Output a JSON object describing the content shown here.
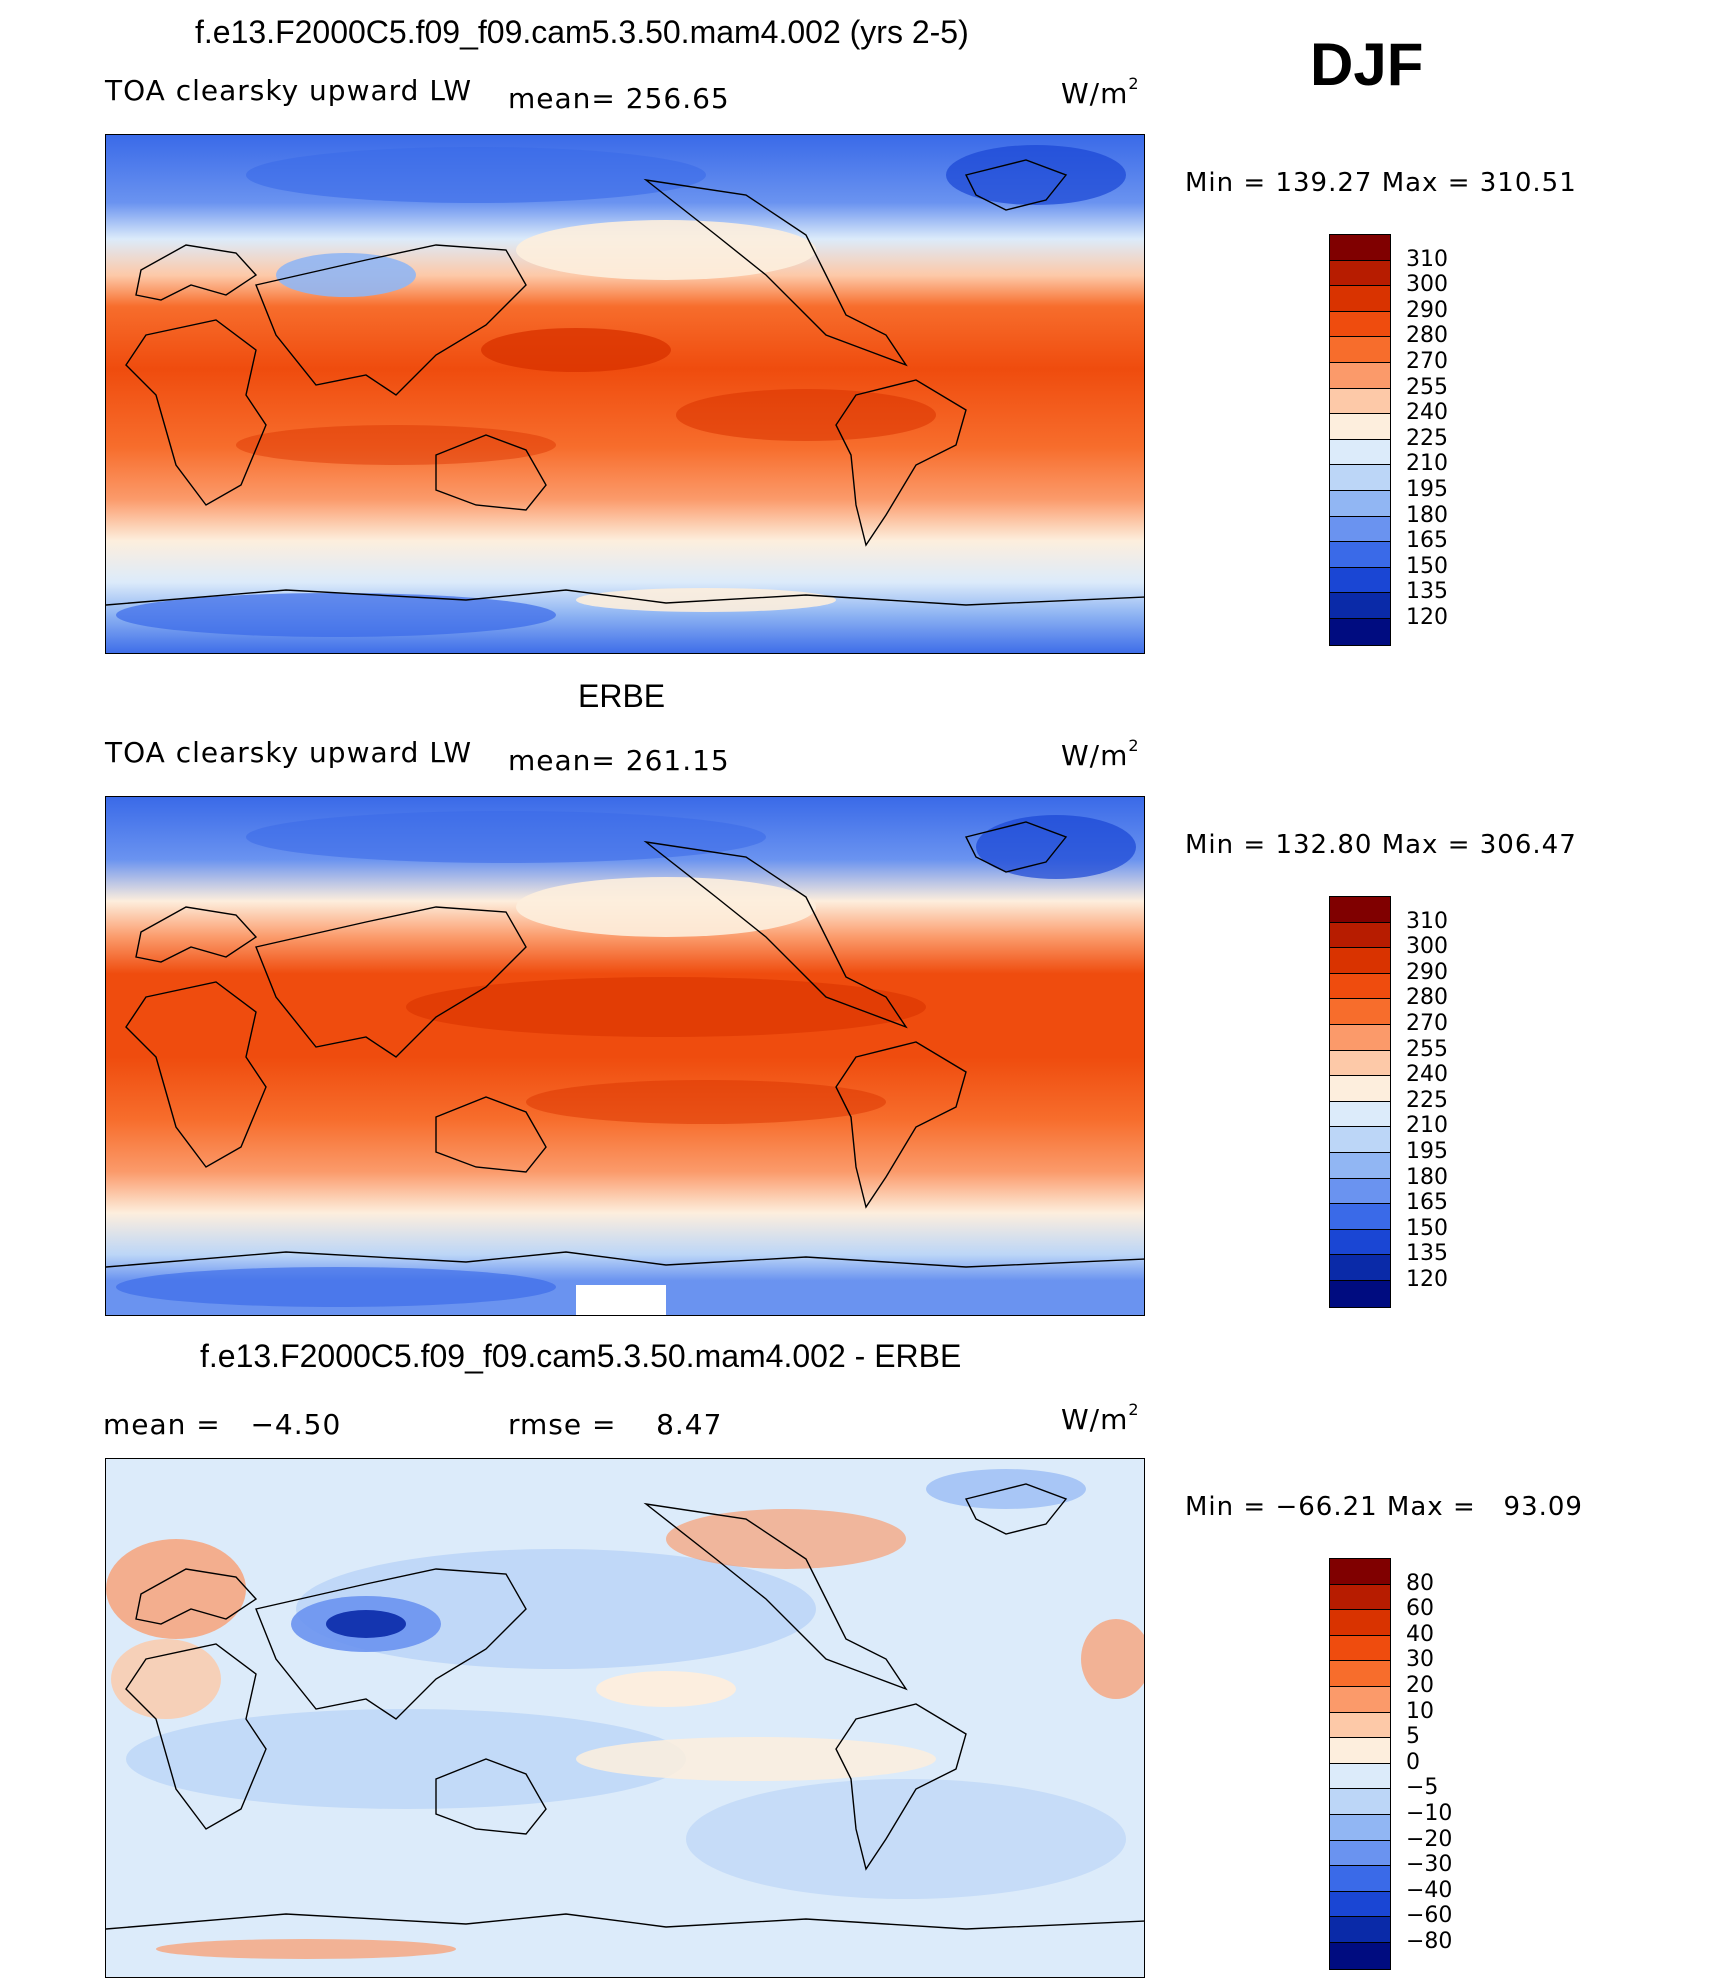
{
  "season": "DJF",
  "panels": [
    {
      "id": "model",
      "title": "f.e13.F2000C5.f09_f09.cam5.3.50.mam4.002 (yrs 2-5)",
      "left_label": "TOA clearsky upward LW",
      "mean_text": "mean= 256.65",
      "units_base": "W/m",
      "units_sup": "2",
      "minmax": "Min = 139.27 Max = 310.51",
      "colorbar": {
        "labels": [
          "310",
          "300",
          "290",
          "280",
          "270",
          "255",
          "240",
          "225",
          "210",
          "195",
          "180",
          "165",
          "150",
          "135",
          "120"
        ],
        "colors": [
          "#800000",
          "#b71c00",
          "#d93300",
          "#ef4c0e",
          "#f76d2c",
          "#fb9a6a",
          "#fdc9a8",
          "#fdeedd",
          "#dcebfa",
          "#bcd6f7",
          "#91b6f3",
          "#6a93f0",
          "#3a6ae8",
          "#1a46d4",
          "#0a2aa8",
          "#000c80"
        ]
      },
      "chart_data": {
        "type": "heatmap",
        "title": "f.e13.F2000C5.f09_f09.cam5.3.50.mam4.002 (yrs 2-5)",
        "variable": "TOA clearsky upward LW",
        "units": "W/m2",
        "mean": 256.65,
        "min": 139.27,
        "max": 310.51,
        "levels": [
          120,
          135,
          150,
          165,
          180,
          195,
          210,
          225,
          240,
          255,
          270,
          280,
          290,
          300,
          310
        ]
      }
    },
    {
      "id": "obs",
      "title": "ERBE",
      "left_label": "TOA clearsky upward LW",
      "mean_text": "mean= 261.15",
      "units_base": "W/m",
      "units_sup": "2",
      "minmax": "Min = 132.80 Max = 306.47",
      "colorbar": {
        "labels": [
          "310",
          "300",
          "290",
          "280",
          "270",
          "255",
          "240",
          "225",
          "210",
          "195",
          "180",
          "165",
          "150",
          "135",
          "120"
        ],
        "colors": [
          "#800000",
          "#b71c00",
          "#d93300",
          "#ef4c0e",
          "#f76d2c",
          "#fb9a6a",
          "#fdc9a8",
          "#fdeedd",
          "#dcebfa",
          "#bcd6f7",
          "#91b6f3",
          "#6a93f0",
          "#3a6ae8",
          "#1a46d4",
          "#0a2aa8",
          "#000c80"
        ]
      },
      "chart_data": {
        "type": "heatmap",
        "title": "ERBE",
        "variable": "TOA clearsky upward LW",
        "units": "W/m2",
        "mean": 261.15,
        "min": 132.8,
        "max": 306.47,
        "levels": [
          120,
          135,
          150,
          165,
          180,
          195,
          210,
          225,
          240,
          255,
          270,
          280,
          290,
          300,
          310
        ]
      }
    },
    {
      "id": "diff",
      "title": "f.e13.F2000C5.f09_f09.cam5.3.50.mam4.002 - ERBE",
      "left_label": "mean =   −4.50",
      "mean_text": "rmse =    8.47",
      "units_base": "W/m",
      "units_sup": "2",
      "minmax": "Min = −66.21 Max =   93.09",
      "colorbar": {
        "labels": [
          "80",
          "60",
          "40",
          "30",
          "20",
          "10",
          "5",
          "0",
          "−5",
          "−10",
          "−20",
          "−30",
          "−40",
          "−60",
          "−80"
        ],
        "colors": [
          "#800000",
          "#b71c00",
          "#d93300",
          "#ef4c0e",
          "#f76d2c",
          "#fb9a6a",
          "#fdc9a8",
          "#fdeedd",
          "#dcebfa",
          "#bcd6f7",
          "#91b6f3",
          "#6a93f0",
          "#3a6ae8",
          "#1a46d4",
          "#0a2aa8",
          "#000c80"
        ]
      },
      "chart_data": {
        "type": "heatmap",
        "title": "f.e13.F2000C5.f09_f09.cam5.3.50.mam4.002 - ERBE",
        "variable": "TOA clearsky upward LW difference",
        "units": "W/m2",
        "mean": -4.5,
        "rmse": 8.47,
        "min": -66.21,
        "max": 93.09,
        "levels": [
          -80,
          -60,
          -40,
          -30,
          -20,
          -10,
          -5,
          0,
          5,
          10,
          20,
          30,
          40,
          60,
          80
        ]
      }
    }
  ]
}
